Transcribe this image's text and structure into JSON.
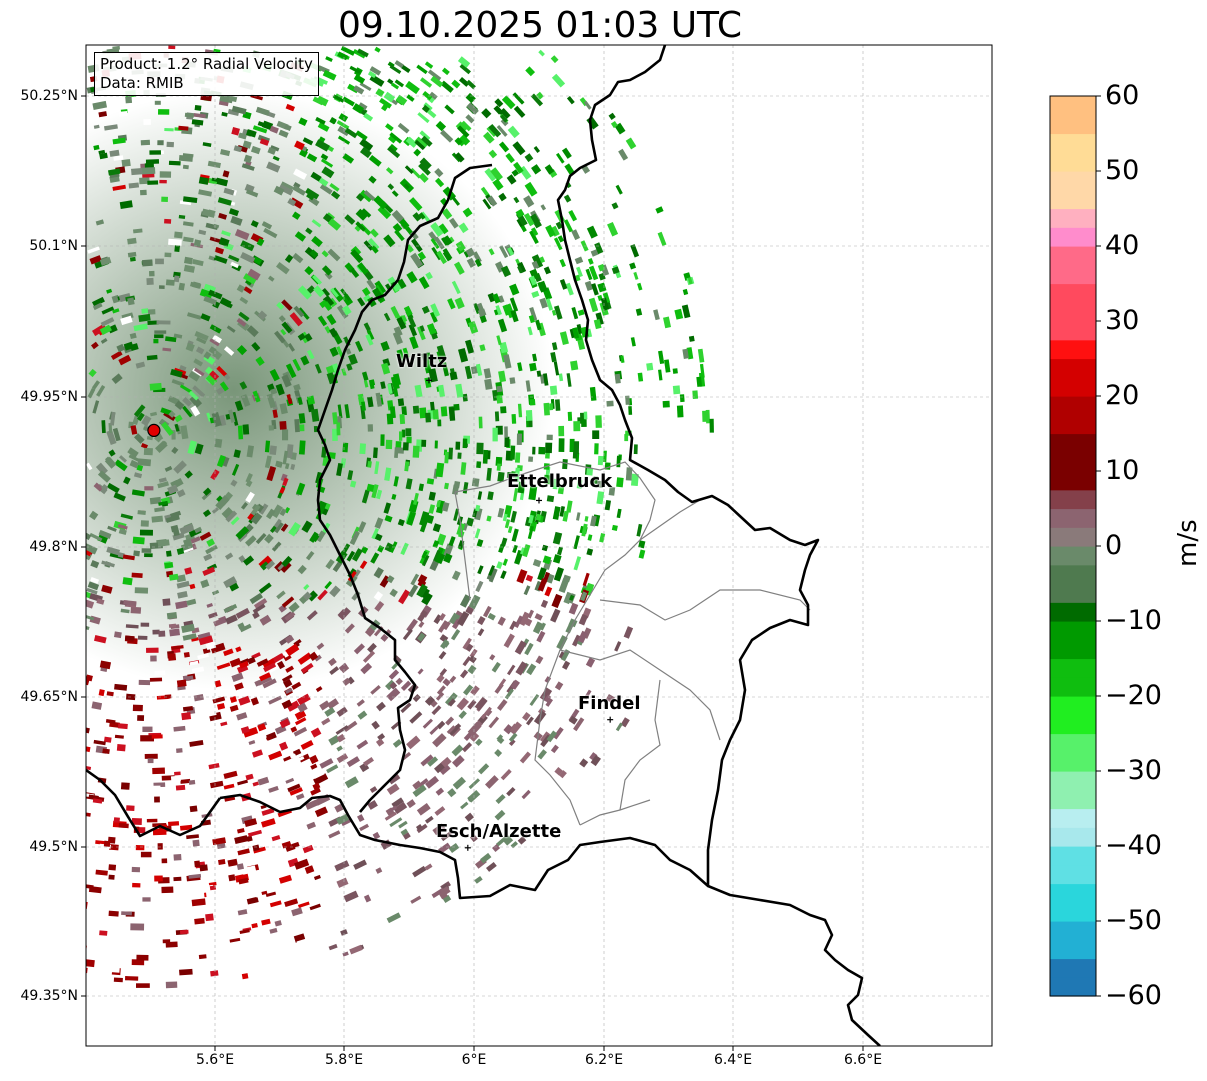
{
  "title": "09.10.2025 01:03 UTC",
  "info": {
    "product": "Product: 1.2° Radial Velocity",
    "data": "Data: RMIB"
  },
  "map": {
    "lon_range": [
      5.4,
      6.8
    ],
    "lat_range": [
      49.3,
      50.3
    ],
    "lat_ticks": [
      "50.25°N",
      "50.1°N",
      "49.95°N",
      "49.8°N",
      "49.65°N",
      "49.5°N",
      "49.35°N"
    ],
    "lon_ticks": [
      "5.6°E",
      "5.8°E",
      "6°E",
      "6.2°E",
      "6.4°E",
      "6.6°E"
    ],
    "radar_site": {
      "lon": 5.505,
      "lat": 49.915
    },
    "cities": [
      {
        "name": "Wiltz",
        "lon": 5.93,
        "lat": 49.965
      },
      {
        "name": "Ettelbruck",
        "lon": 6.1,
        "lat": 49.845
      },
      {
        "name": "Findel",
        "lon": 6.21,
        "lat": 49.626
      },
      {
        "name": "Esch/Alzette",
        "lon": 5.99,
        "lat": 49.498
      }
    ]
  },
  "colorbar": {
    "label": "m/s",
    "ticks": [
      "60",
      "50",
      "40",
      "30",
      "20",
      "10",
      "0",
      "−10",
      "−20",
      "−30",
      "−40",
      "−50",
      "−60"
    ],
    "min": -60,
    "max": 60,
    "colors": {
      "neg_60": "#1f78b4",
      "neg_50": "#2ad6dc",
      "neg_40": "#b4ecef",
      "neg_30": "#57f16a",
      "neg_20": "#0fbe0f",
      "neg_10": "#006b00",
      "zero_low": "#6a8a6a",
      "zero_high": "#8c6470",
      "pos_10": "#7a0000",
      "pos_20": "#d40000",
      "pos_30": "#ff4a5e",
      "pos_40": "#ff8ccc",
      "pos_50": "#ffdc96",
      "pos_60": "#ff9a50"
    }
  }
}
